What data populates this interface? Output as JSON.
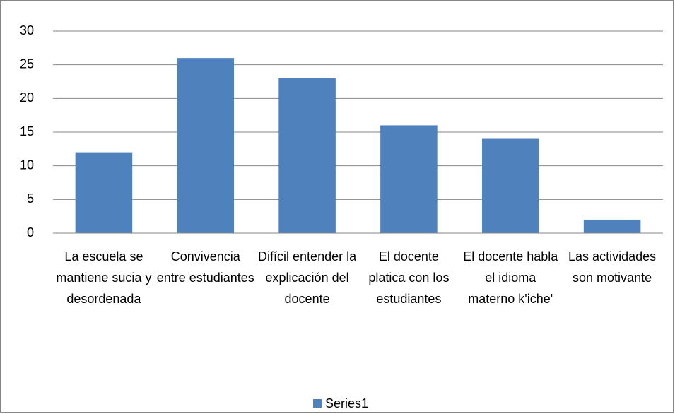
{
  "chart_data": {
    "type": "bar",
    "categories": [
      "La escuela se mantiene sucia y desordenada",
      "Convivencia entre estudiantes",
      "Difícil entender la explicación del docente",
      "El docente platica con los estudiantes",
      "El docente habla el idioma materno k'iche'",
      "Las actividades son motivante"
    ],
    "series": [
      {
        "name": "Series1",
        "color": "#4f81bd",
        "values": [
          12,
          26,
          23,
          16,
          14,
          2
        ]
      }
    ],
    "ylim": [
      0,
      30
    ],
    "yticks": [
      0,
      5,
      10,
      15,
      20,
      25,
      30
    ],
    "grid": true,
    "legend": "bottom"
  }
}
